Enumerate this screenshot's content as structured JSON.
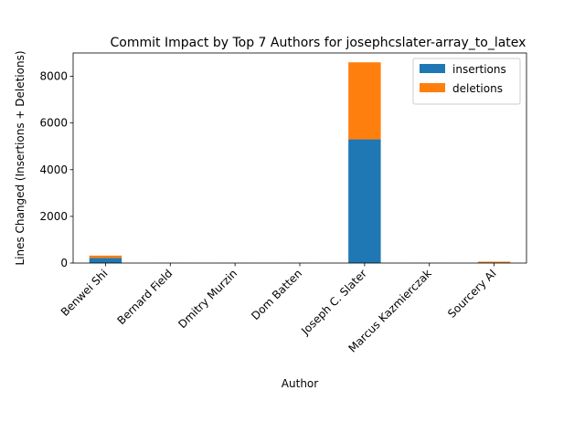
{
  "chart_data": {
    "type": "bar",
    "stacked": true,
    "title": "Commit Impact by Top 7 Authors for josephcslater-array_to_latex",
    "xlabel": "Author",
    "ylabel": "Lines Changed (Insertions + Deletions)",
    "categories": [
      "Benwei Shi",
      "Bernard Field",
      "Dmitry Murzin",
      "Dom Batten",
      "Joseph C. Slater",
      "Marcus Kazmierczak",
      "Sourcery AI"
    ],
    "series": [
      {
        "name": "insertions",
        "color": "#1f77b4",
        "values": [
          220,
          2,
          3,
          2,
          5300,
          2,
          20
        ]
      },
      {
        "name": "deletions",
        "color": "#ff7f0e",
        "values": [
          100,
          1,
          2,
          1,
          3300,
          1,
          40
        ]
      }
    ],
    "ylim": [
      0,
      9000
    ],
    "yticks": [
      0,
      2000,
      4000,
      6000,
      8000
    ],
    "grid": false,
    "legend": "top-right"
  }
}
